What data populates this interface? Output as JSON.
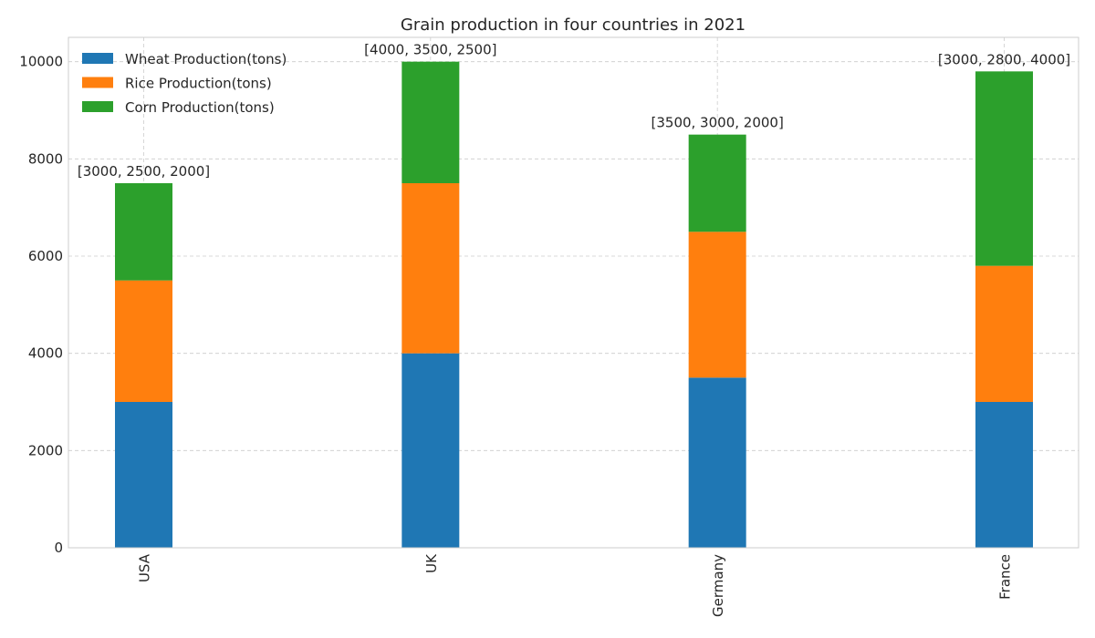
{
  "chart_data": {
    "type": "bar",
    "stacked": true,
    "title": "Grain production in four countries in 2021",
    "xlabel": "",
    "ylabel": "",
    "categories": [
      "USA",
      "UK",
      "Germany",
      "France"
    ],
    "series": [
      {
        "name": "Wheat Production(tons)",
        "values": [
          3000,
          4000,
          3500,
          3000
        ],
        "color": "#1f77b4"
      },
      {
        "name": "Rice Production(tons)",
        "values": [
          2500,
          3500,
          3000,
          2800
        ],
        "color": "#ff7f0e"
      },
      {
        "name": "Corn Production(tons)",
        "values": [
          2000,
          2500,
          2000,
          4000
        ],
        "color": "#2ca02c"
      }
    ],
    "data_labels": [
      "[3000, 2500, 2000]",
      "[4000, 3500, 2500]",
      "[3500, 3000, 2000]",
      "[3000, 2800, 4000]"
    ],
    "ylim": [
      0,
      10500
    ],
    "yticks": [
      0,
      2000,
      4000,
      6000,
      8000,
      10000
    ],
    "grid": true,
    "legend_position": "top-left",
    "x_tick_rotation": 90
  }
}
